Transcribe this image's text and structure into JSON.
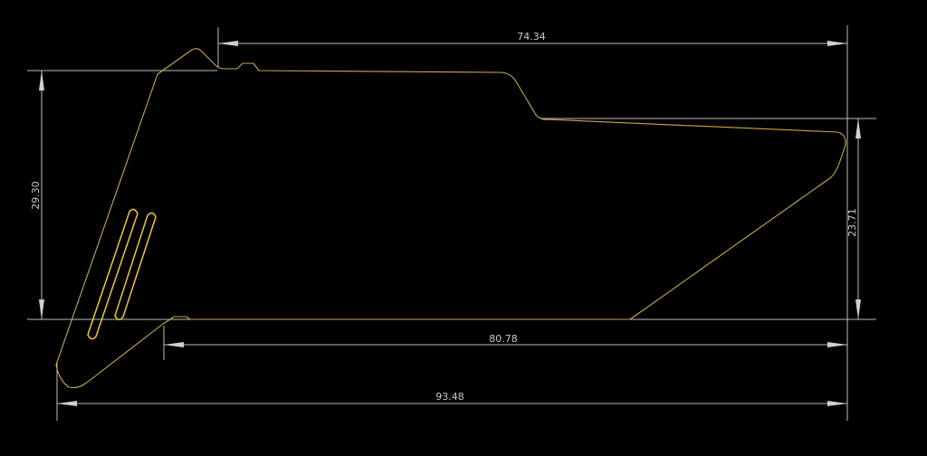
{
  "drawing": {
    "colors": {
      "background": "#000000",
      "dimension": "#bdbdbd",
      "outline": "#c9a84b",
      "slots": "#f2c637"
    }
  },
  "dimensions": {
    "top_width": "74.34",
    "left_height": "29.30",
    "right_height": "23.71",
    "bottom_inner_width": "80.78",
    "overall_width": "93.48"
  }
}
